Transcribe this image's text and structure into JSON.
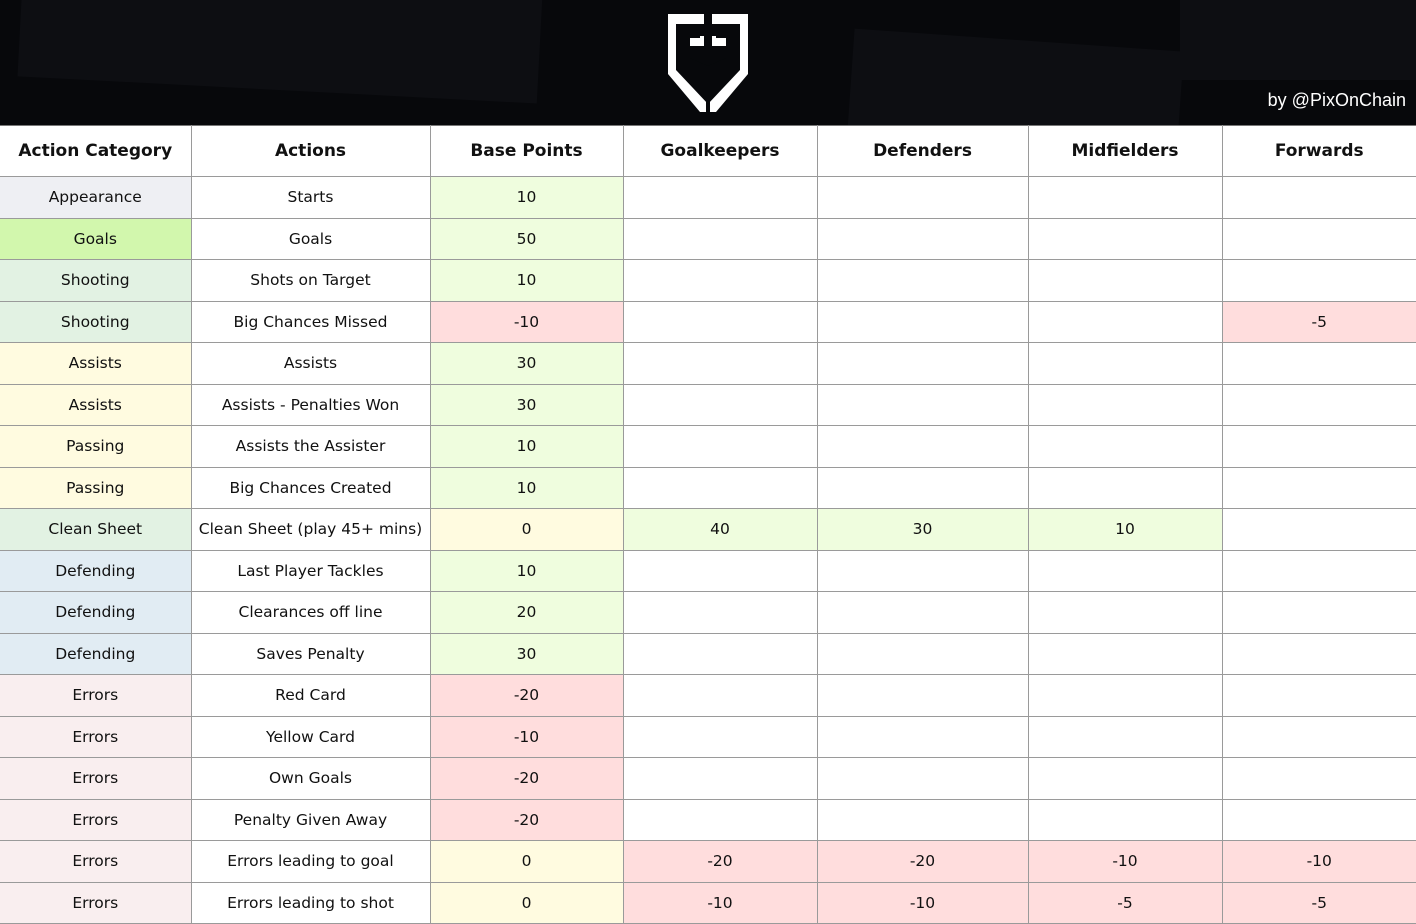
{
  "header": {
    "logo": "FE shield logo",
    "credit": "by @PixOnChain"
  },
  "colors": {
    "cat": {
      "Appearance": "#eeeff3",
      "Goals": "#d2f7ad",
      "Shooting": "#e2f2e3",
      "Assists": "#fffbe0",
      "Passing": "#fffbe0",
      "Clean Sheet": "#e2f2e3",
      "Defending": "#e1ecf3",
      "Errors": "#f9eeef"
    },
    "positive": "#effdde",
    "negative": "#ffdddd",
    "zero": "#fffbe0"
  },
  "columns": [
    "Action Category",
    "Actions",
    "Base Points",
    "Goalkeepers",
    "Defenders",
    "Midfielders",
    "Forwards"
  ],
  "rows": [
    [
      "Appearance",
      "Starts",
      "10",
      "",
      "",
      "",
      ""
    ],
    [
      "Goals",
      "Goals",
      "50",
      "",
      "",
      "",
      ""
    ],
    [
      "Shooting",
      "Shots on Target",
      "10",
      "",
      "",
      "",
      ""
    ],
    [
      "Shooting",
      "Big Chances Missed",
      "-10",
      "",
      "",
      "",
      "-5"
    ],
    [
      "Assists",
      "Assists",
      "30",
      "",
      "",
      "",
      ""
    ],
    [
      "Assists",
      "Assists - Penalties Won",
      "30",
      "",
      "",
      "",
      ""
    ],
    [
      "Passing",
      "Assists the Assister",
      "10",
      "",
      "",
      "",
      ""
    ],
    [
      "Passing",
      "Big Chances Created",
      "10",
      "",
      "",
      "",
      ""
    ],
    [
      "Clean Sheet",
      "Clean Sheet (play 45+ mins)",
      "0",
      "40",
      "30",
      "10",
      ""
    ],
    [
      "Defending",
      "Last Player Tackles",
      "10",
      "",
      "",
      "",
      ""
    ],
    [
      "Defending",
      "Clearances off line",
      "20",
      "",
      "",
      "",
      ""
    ],
    [
      "Defending",
      "Saves Penalty",
      "30",
      "",
      "",
      "",
      ""
    ],
    [
      "Errors",
      "Red Card",
      "-20",
      "",
      "",
      "",
      ""
    ],
    [
      "Errors",
      "Yellow Card",
      "-10",
      "",
      "",
      "",
      ""
    ],
    [
      "Errors",
      "Own Goals",
      "-20",
      "",
      "",
      "",
      ""
    ],
    [
      "Errors",
      "Penalty Given Away",
      "-20",
      "",
      "",
      "",
      ""
    ],
    [
      "Errors",
      "Errors leading to goal",
      "0",
      "-20",
      "-20",
      "-10",
      "-10"
    ],
    [
      "Errors",
      "Errors leading to shot",
      "0",
      "-10",
      "-10",
      "-5",
      "-5"
    ]
  ]
}
